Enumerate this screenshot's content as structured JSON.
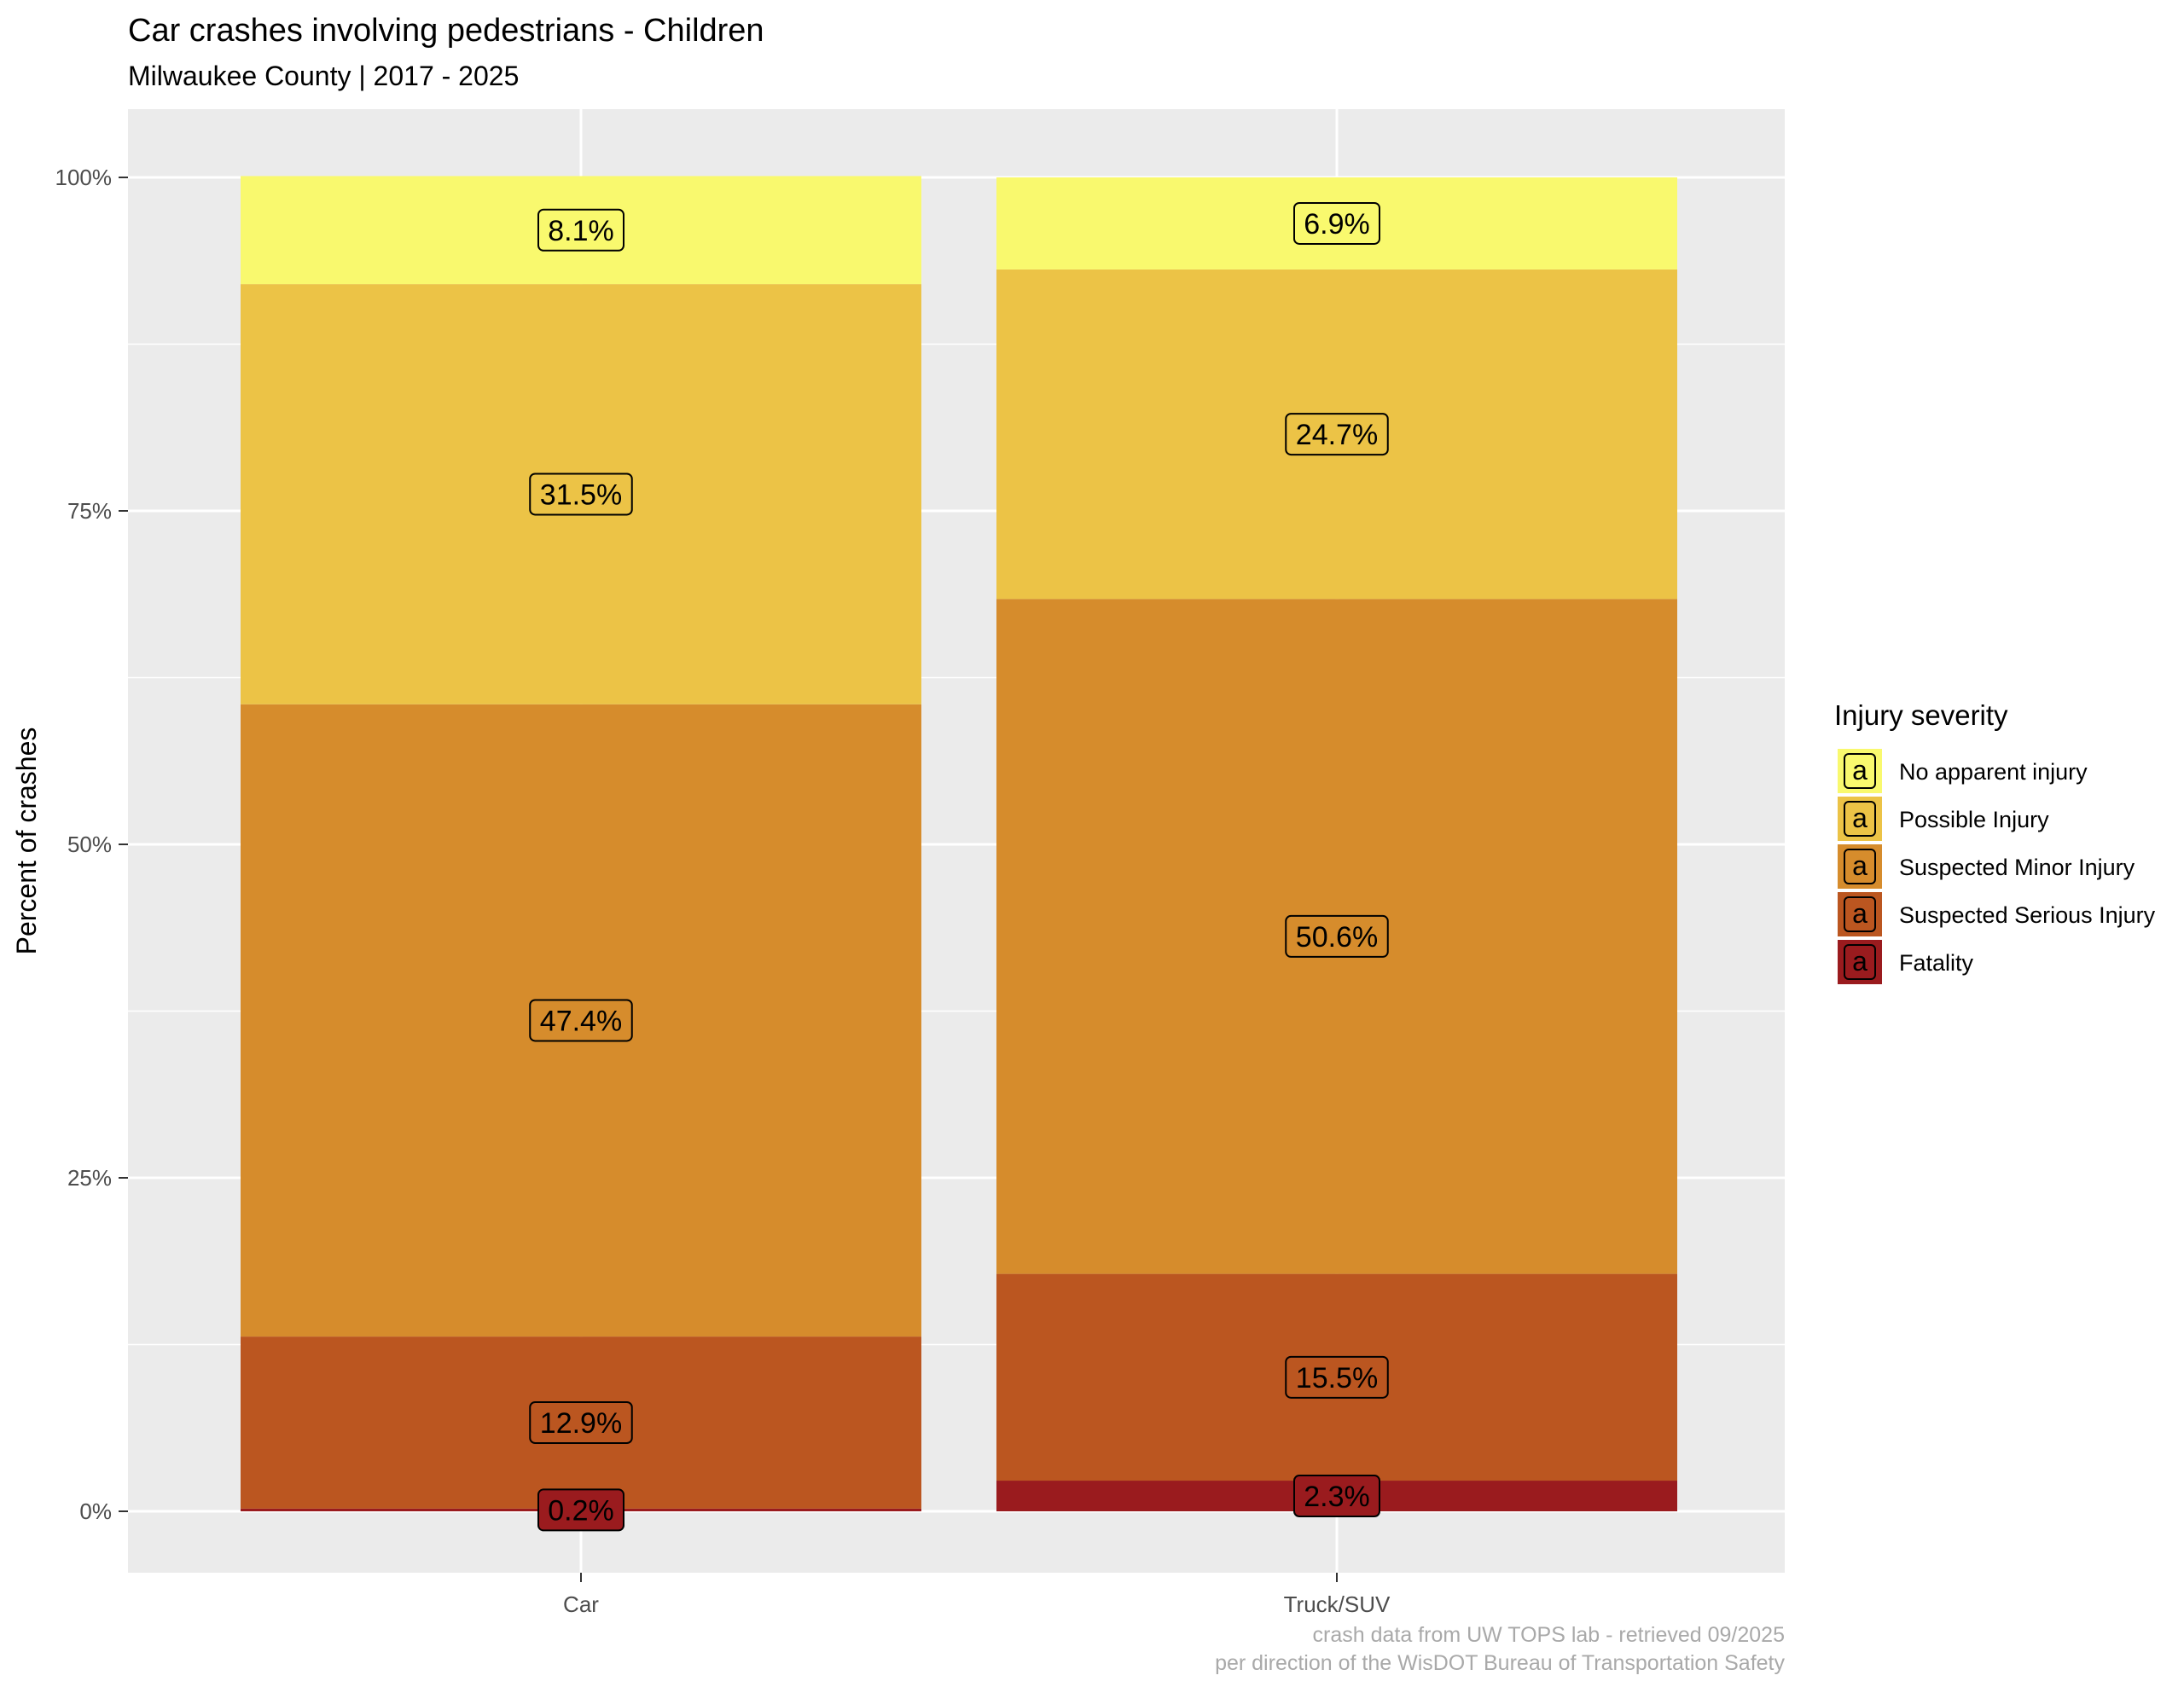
{
  "chart_data": {
    "type": "bar",
    "stacked": true,
    "title": "Car crashes involving pedestrians - Children",
    "subtitle": "Milwaukee County | 2017 - 2025",
    "xlabel": "",
    "ylabel": "Percent of crashes",
    "ylim": [
      0,
      1
    ],
    "y_ticks": [
      0,
      0.25,
      0.5,
      0.75,
      1.0
    ],
    "y_tick_labels": [
      "0%",
      "25%",
      "50%",
      "75%",
      "100%"
    ],
    "categories": [
      "Car",
      "Truck/SUV"
    ],
    "series": [
      {
        "name": "Fatality",
        "color": "#9a1b1e",
        "values": [
          0.002,
          0.023
        ],
        "labels": [
          "0.2%",
          "2.3%"
        ]
      },
      {
        "name": "Suspected Serious Injury",
        "color": "#bb5620",
        "values": [
          0.129,
          0.155
        ],
        "labels": [
          "12.9%",
          "15.5%"
        ]
      },
      {
        "name": "Suspected Minor Injury",
        "color": "#d68c2c",
        "values": [
          0.474,
          0.506
        ],
        "labels": [
          "47.4%",
          "50.6%"
        ]
      },
      {
        "name": "Possible Injury",
        "color": "#ecc346",
        "values": [
          0.315,
          0.247
        ],
        "labels": [
          "31.5%",
          "24.7%"
        ]
      },
      {
        "name": "No apparent injury",
        "color": "#f9f96e",
        "values": [
          0.081,
          0.069
        ],
        "labels": [
          "8.1%",
          "6.9%"
        ]
      }
    ],
    "legend": {
      "title": "Injury severity",
      "position": "right",
      "key_glyph": "a",
      "order": [
        "No apparent injury",
        "Possible Injury",
        "Suspected Minor Injury",
        "Suspected Serious Injury",
        "Fatality"
      ]
    },
    "grid": true,
    "panel_background": "#ebebeb",
    "caption": [
      "crash data from UW TOPS lab - retrieved 09/2025",
      "per direction of the WisDOT Bureau of Transportation Safety"
    ]
  }
}
